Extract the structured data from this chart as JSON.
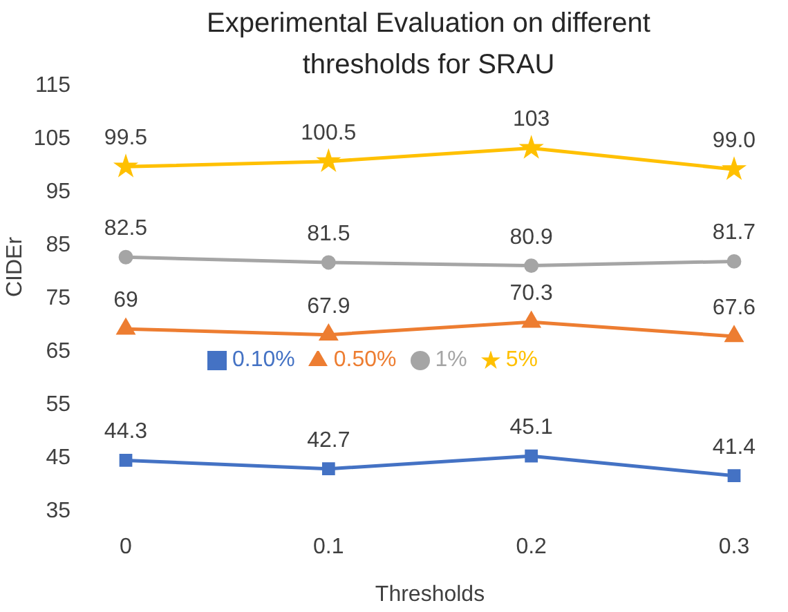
{
  "chart_data": {
    "type": "line",
    "title": "Experimental Evaluation on different thresholds for SRAU",
    "xlabel": "Thresholds",
    "ylabel": "CIDEr",
    "categories": [
      "0",
      "0.1",
      "0.2",
      "0.3"
    ],
    "ylim": [
      35,
      115
    ],
    "yticks": [
      35,
      45,
      55,
      65,
      75,
      85,
      95,
      105,
      115
    ],
    "grid": false,
    "legend": "center",
    "series": [
      {
        "name": "0.10%",
        "color": "#4472c4",
        "marker": "square",
        "values": [
          44.3,
          42.7,
          45.1,
          41.4
        ],
        "value_labels": [
          "44.3",
          "42.7",
          "45.1",
          "41.4"
        ]
      },
      {
        "name": "0.50%",
        "color": "#ed7d31",
        "marker": "triangle",
        "values": [
          69,
          67.9,
          70.3,
          67.6
        ],
        "value_labels": [
          "69",
          "67.9",
          "70.3",
          "67.6"
        ]
      },
      {
        "name": "1%",
        "color": "#a5a5a5",
        "marker": "circle",
        "values": [
          82.5,
          81.5,
          80.9,
          81.7
        ],
        "value_labels": [
          "82.5",
          "81.5",
          "80.9",
          "81.7"
        ]
      },
      {
        "name": "5%",
        "color": "#ffc000",
        "marker": "star",
        "values": [
          99.5,
          100.5,
          103,
          99.0
        ],
        "value_labels": [
          "99.5",
          "100.5",
          "103",
          "99.0"
        ]
      }
    ]
  }
}
